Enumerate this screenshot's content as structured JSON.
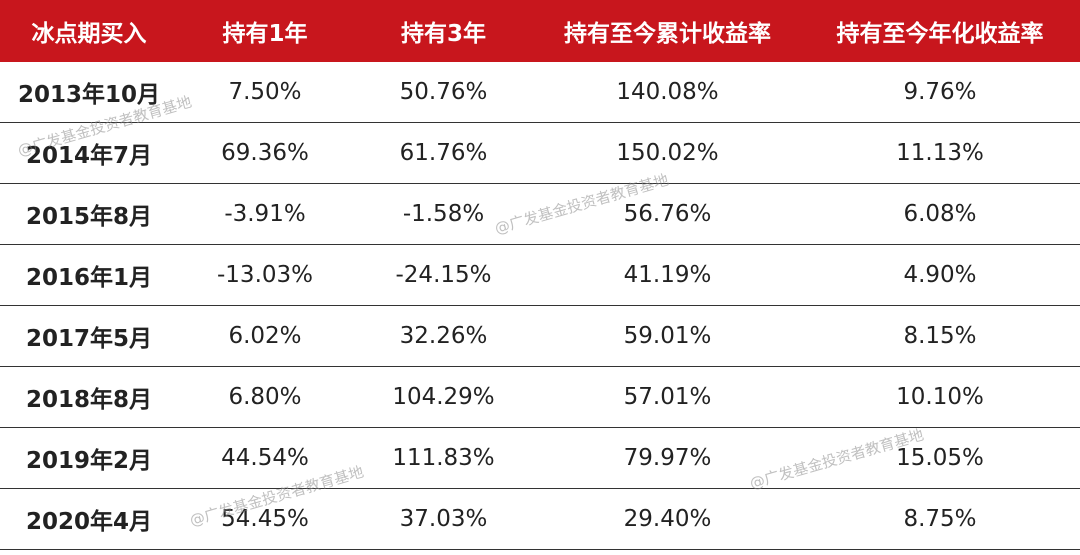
{
  "table": {
    "columns": [
      "冰点期买入",
      "持有1年",
      "持有3年",
      "持有至今累计收益率",
      "持有至今年化收益率"
    ],
    "rows": [
      [
        "2013年10月",
        "7.50%",
        "50.76%",
        "140.08%",
        "9.76%"
      ],
      [
        "2014年7月",
        "69.36%",
        "61.76%",
        "150.02%",
        "11.13%"
      ],
      [
        "2015年8月",
        "-3.91%",
        "-1.58%",
        "56.76%",
        "6.08%"
      ],
      [
        "2016年1月",
        "-13.03%",
        "-24.15%",
        "41.19%",
        "4.90%"
      ],
      [
        "2017年5月",
        "6.02%",
        "32.26%",
        "59.01%",
        "8.15%"
      ],
      [
        "2018年8月",
        "6.80%",
        "104.29%",
        "57.01%",
        "10.10%"
      ],
      [
        "2019年2月",
        "44.54%",
        "111.83%",
        "79.97%",
        "15.05%"
      ],
      [
        "2020年4月",
        "54.45%",
        "37.03%",
        "29.40%",
        "8.75%"
      ]
    ]
  },
  "watermarks": [
    "@广发基金投资者教育基地",
    "@广发基金投资者教育基地",
    "@广发基金投资者教育基地",
    "@广发基金投资者教育基地"
  ]
}
